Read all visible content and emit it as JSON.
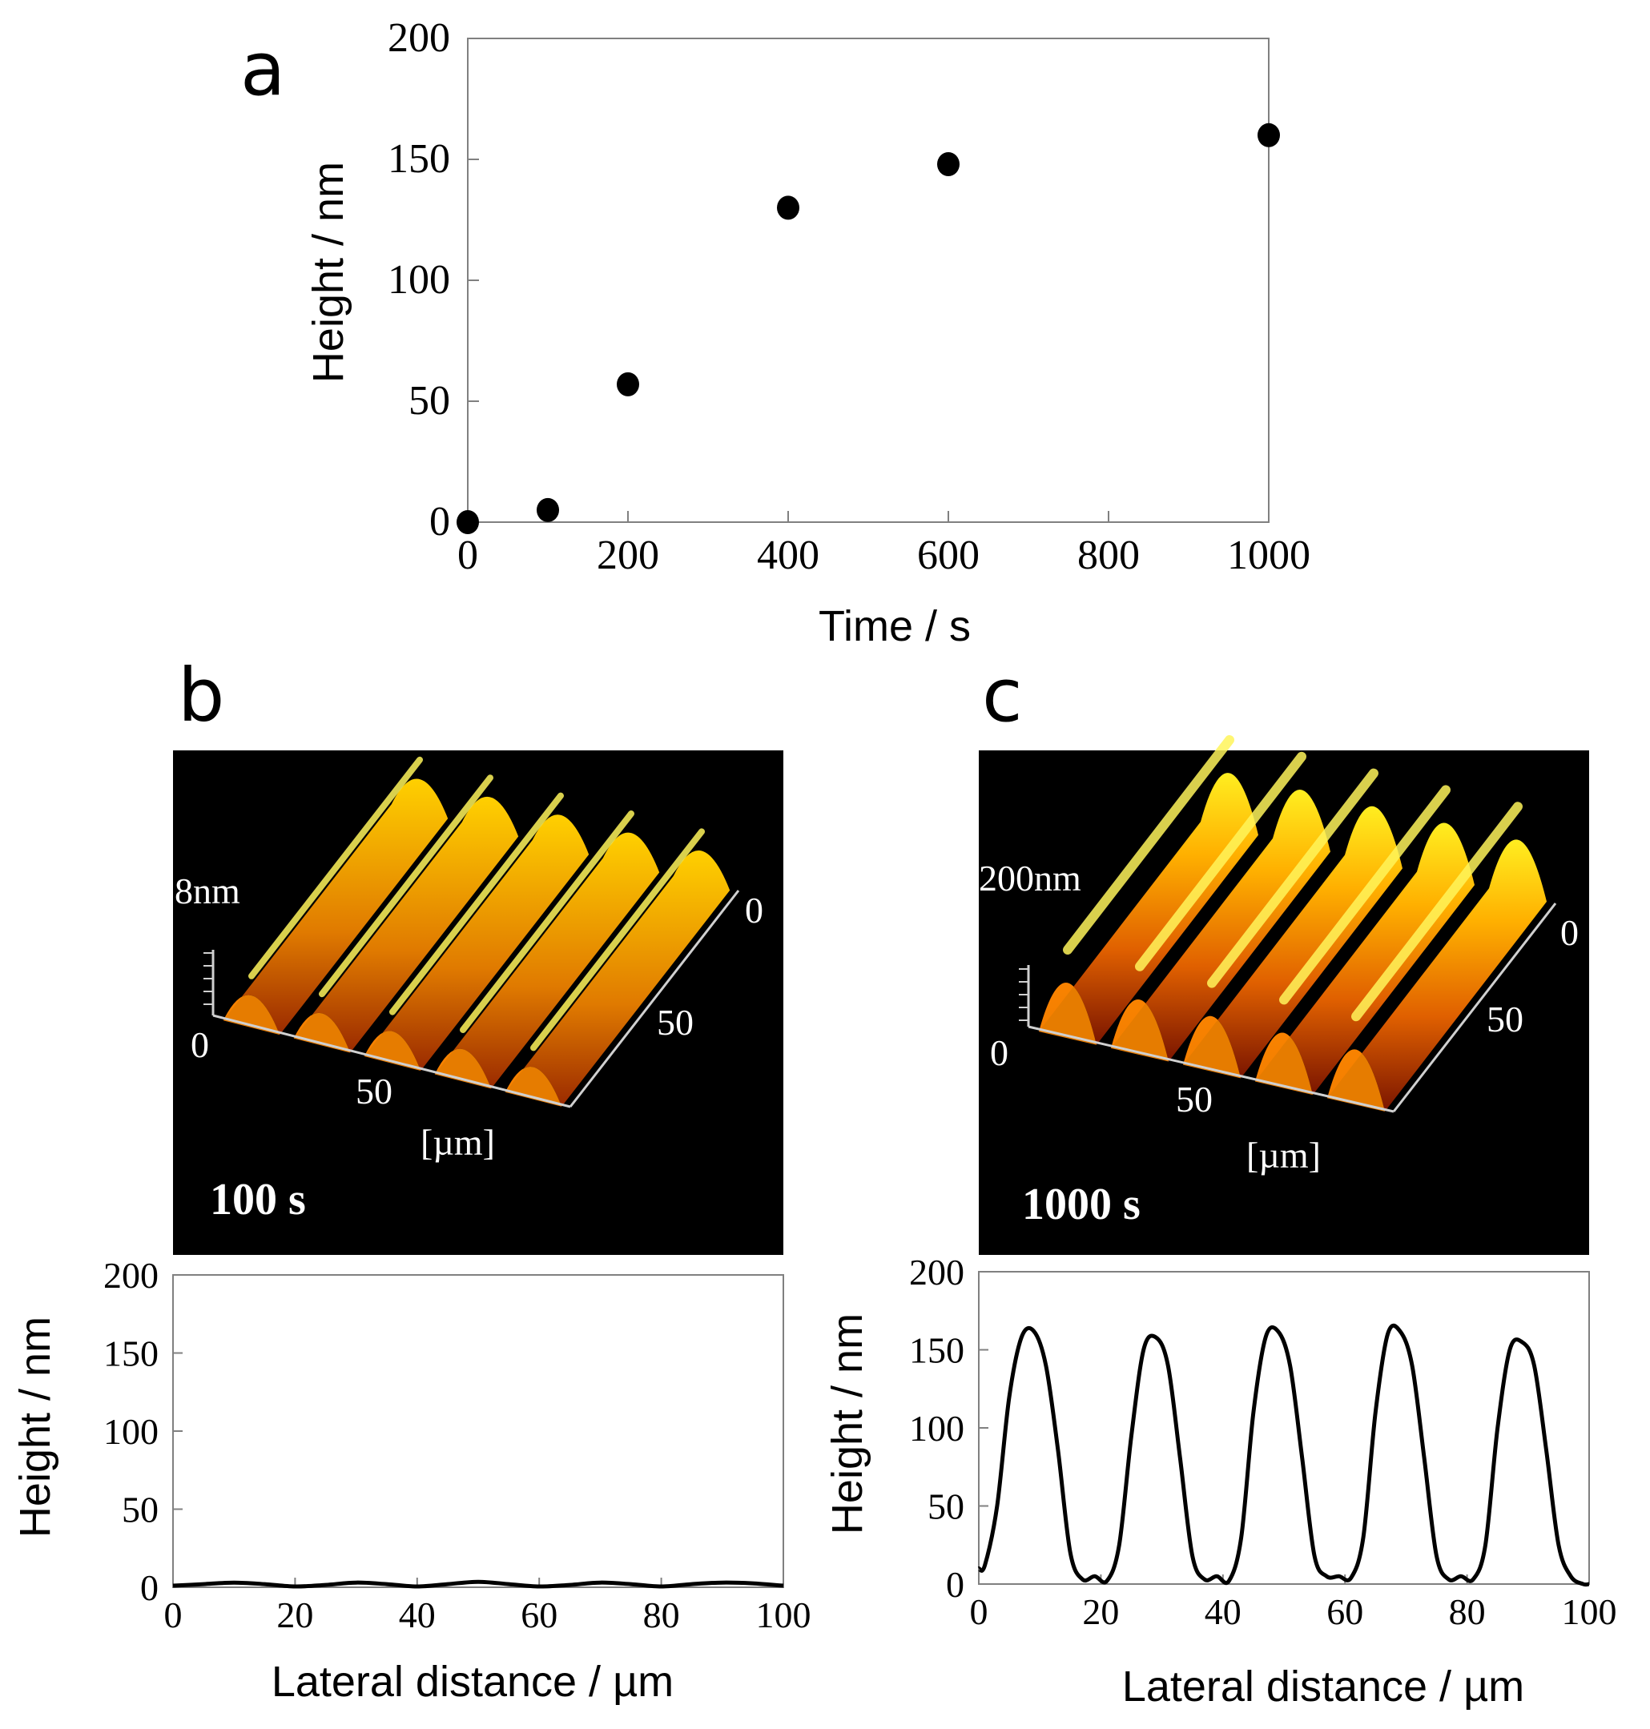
{
  "panel_labels": [
    "a",
    "b",
    "c"
  ],
  "chart_data": [
    {
      "id": "a",
      "type": "scatter",
      "title": "",
      "xlabel": "Time / s",
      "ylabel": "Height / nm",
      "xlim": [
        0,
        1000
      ],
      "ylim": [
        0,
        200
      ],
      "xticks": [
        0,
        200,
        400,
        600,
        800,
        1000
      ],
      "yticks": [
        0,
        50,
        100,
        150,
        200
      ],
      "xticklabels": [
        "0",
        "200",
        "400",
        "600",
        "800",
        "1000"
      ],
      "yticklabels": [
        "0",
        "50",
        "100",
        "150",
        "200"
      ],
      "grid": false,
      "series": [
        {
          "name": "height",
          "x": [
            0,
            100,
            200,
            400,
            600,
            1000
          ],
          "y": [
            0,
            5,
            57,
            130,
            148,
            160
          ]
        }
      ]
    },
    {
      "id": "b",
      "type": "line",
      "title": "",
      "xlabel": "Lateral distance / µm",
      "ylabel": "Height / nm",
      "xlim": [
        0,
        100
      ],
      "ylim": [
        0,
        200
      ],
      "xticks": [
        0,
        20,
        40,
        60,
        80,
        100
      ],
      "yticks": [
        0,
        50,
        100,
        150,
        200
      ],
      "xticklabels": [
        "0",
        "20",
        "40",
        "60",
        "80",
        "100"
      ],
      "yticklabels": [
        "0",
        "50",
        "100",
        "150",
        "200"
      ],
      "grid": false,
      "series": [
        {
          "name": "profile 100 s",
          "x": [
            0,
            5,
            10,
            15,
            20,
            25,
            30,
            35,
            40,
            45,
            50,
            55,
            60,
            65,
            70,
            75,
            80,
            85,
            90,
            95,
            100
          ],
          "y": [
            1,
            2,
            3,
            2,
            0.5,
            1.5,
            3,
            2,
            0.5,
            2,
            3.5,
            2,
            0.5,
            1.5,
            3,
            2,
            0.5,
            2,
            3,
            2.5,
            1
          ]
        }
      ]
    },
    {
      "id": "c",
      "type": "line",
      "title": "",
      "xlabel": "Lateral distance / µm",
      "ylabel": "Height / nm",
      "xlim": [
        0,
        100
      ],
      "ylim": [
        0,
        200
      ],
      "xticks": [
        0,
        20,
        40,
        60,
        80,
        100
      ],
      "yticks": [
        0,
        50,
        100,
        150,
        200
      ],
      "xticklabels": [
        "0",
        "20",
        "40",
        "60",
        "80",
        "100"
      ],
      "yticklabels": [
        "0",
        "50",
        "100",
        "150",
        "200"
      ],
      "grid": false,
      "series": [
        {
          "name": "profile 1000 s",
          "x": [
            0,
            1,
            3,
            5,
            7,
            9,
            11,
            13,
            15,
            17,
            19,
            21,
            23,
            25,
            27,
            29,
            31,
            33,
            35,
            37,
            39,
            41,
            43,
            45,
            47,
            49,
            51,
            53,
            55,
            57,
            59,
            61,
            63,
            65,
            67,
            69,
            71,
            73,
            75,
            77,
            79,
            81,
            83,
            85,
            87,
            89,
            91,
            93,
            95,
            97,
            99,
            100
          ],
          "y": [
            10,
            12,
            50,
            120,
            158,
            162,
            140,
            85,
            20,
            3,
            5,
            2,
            25,
            95,
            150,
            158,
            140,
            80,
            18,
            3,
            5,
            2,
            30,
            110,
            158,
            162,
            140,
            80,
            18,
            5,
            5,
            4,
            30,
            110,
            160,
            162,
            140,
            80,
            18,
            3,
            5,
            3,
            25,
            100,
            150,
            155,
            140,
            85,
            25,
            5,
            0,
            0
          ]
        }
      ]
    }
  ],
  "afm_b": {
    "height_scale": "8nm",
    "axis_zero_left": "0",
    "axis_50_x": "50",
    "axis_zero_right": "0",
    "axis_50_y": "50",
    "unit": "[µm]",
    "time": "100 s"
  },
  "afm_c": {
    "height_scale": "200nm",
    "axis_zero_left": "0",
    "axis_50_x": "50",
    "axis_zero_right": "0",
    "axis_50_y": "50",
    "unit": "[µm]",
    "time": "1000 s"
  },
  "colors": {
    "ink": "#000000",
    "frame": "#808080",
    "afm_bg": "#000000",
    "afm_peak": "#ffe600",
    "afm_mid": "#ff9d00",
    "afm_low": "#8b1a00",
    "afm_axis": "#d0d0d0"
  }
}
